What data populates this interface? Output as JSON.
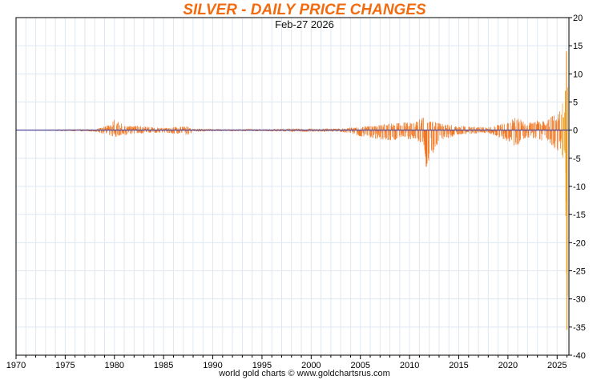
{
  "chart_data": {
    "type": "bar",
    "title": "SILVER - DAILY PRICE CHANGES",
    "subtitle": "Feb-27  2026",
    "source": "world gold charts © www.goldchartsrus.com",
    "xlabel": "",
    "ylabel": "",
    "xlim": [
      1970,
      2026.2
    ],
    "ylim": [
      -40,
      20
    ],
    "y_ticks": [
      20,
      15,
      10,
      5,
      0,
      -5,
      -10,
      -15,
      -20,
      -25,
      -30,
      -35,
      -40
    ],
    "x_ticks": [
      "1970",
      "1975",
      "1980",
      "1985",
      "1990",
      "1995",
      "2000",
      "2005",
      "2010",
      "2015",
      "2020",
      "2025"
    ],
    "grid": true,
    "y_axis_position": "right",
    "colors": {
      "title": "#f26b0f",
      "bars": "#f26b0f",
      "recent_bars": "#e89a1c",
      "zero_line": "#3a3aa0",
      "grid": "#dfe8f0"
    },
    "series": [
      {
        "values_approx_envelope": [
          {
            "x": 1970.0,
            "up": 0.05,
            "down": -0.05
          },
          {
            "x": 1973.0,
            "up": 0.1,
            "down": -0.1
          },
          {
            "x": 1975.0,
            "up": 0.15,
            "down": -0.2
          },
          {
            "x": 1978.0,
            "up": 0.2,
            "down": -0.25
          },
          {
            "x": 1979.6,
            "up": 1.0,
            "down": -1.0
          },
          {
            "x": 1980.0,
            "up": 2.0,
            "down": -1.3
          },
          {
            "x": 1981.0,
            "up": 0.9,
            "down": -0.9
          },
          {
            "x": 1983.0,
            "up": 0.7,
            "down": -0.6
          },
          {
            "x": 1985.0,
            "up": 0.4,
            "down": -0.4
          },
          {
            "x": 1987.4,
            "up": 0.7,
            "down": -1.0
          },
          {
            "x": 1988.0,
            "up": 0.3,
            "down": -0.3
          },
          {
            "x": 1990.0,
            "up": 0.2,
            "down": -0.2
          },
          {
            "x": 1995.0,
            "up": 0.2,
            "down": -0.2
          },
          {
            "x": 1998.0,
            "up": 0.3,
            "down": -0.3
          },
          {
            "x": 2003.0,
            "up": 0.3,
            "down": -0.3
          },
          {
            "x": 2006.0,
            "up": 0.8,
            "down": -1.5
          },
          {
            "x": 2008.0,
            "up": 1.2,
            "down": -1.8
          },
          {
            "x": 2010.5,
            "up": 1.5,
            "down": -1.6
          },
          {
            "x": 2011.4,
            "up": 2.3,
            "down": -2.8
          },
          {
            "x": 2011.7,
            "up": 2.0,
            "down": -6.5
          },
          {
            "x": 2013.0,
            "up": 1.3,
            "down": -2.0
          },
          {
            "x": 2015.0,
            "up": 0.8,
            "down": -0.8
          },
          {
            "x": 2018.0,
            "up": 0.5,
            "down": -0.5
          },
          {
            "x": 2020.0,
            "up": 1.5,
            "down": -2.0
          },
          {
            "x": 2020.7,
            "up": 2.2,
            "down": -3.0
          },
          {
            "x": 2022.0,
            "up": 1.5,
            "down": -1.5
          },
          {
            "x": 2024.0,
            "up": 1.8,
            "down": -2.0
          },
          {
            "x": 2025.5,
            "up": 4.5,
            "down": -4.5
          },
          {
            "x": 2025.8,
            "up": 7.0,
            "down": -7.5
          },
          {
            "x": 2026.0,
            "up": 14.0,
            "down": -35.5
          },
          {
            "x": 2026.15,
            "up": 9.0,
            "down": -12.0
          }
        ]
      }
    ]
  }
}
